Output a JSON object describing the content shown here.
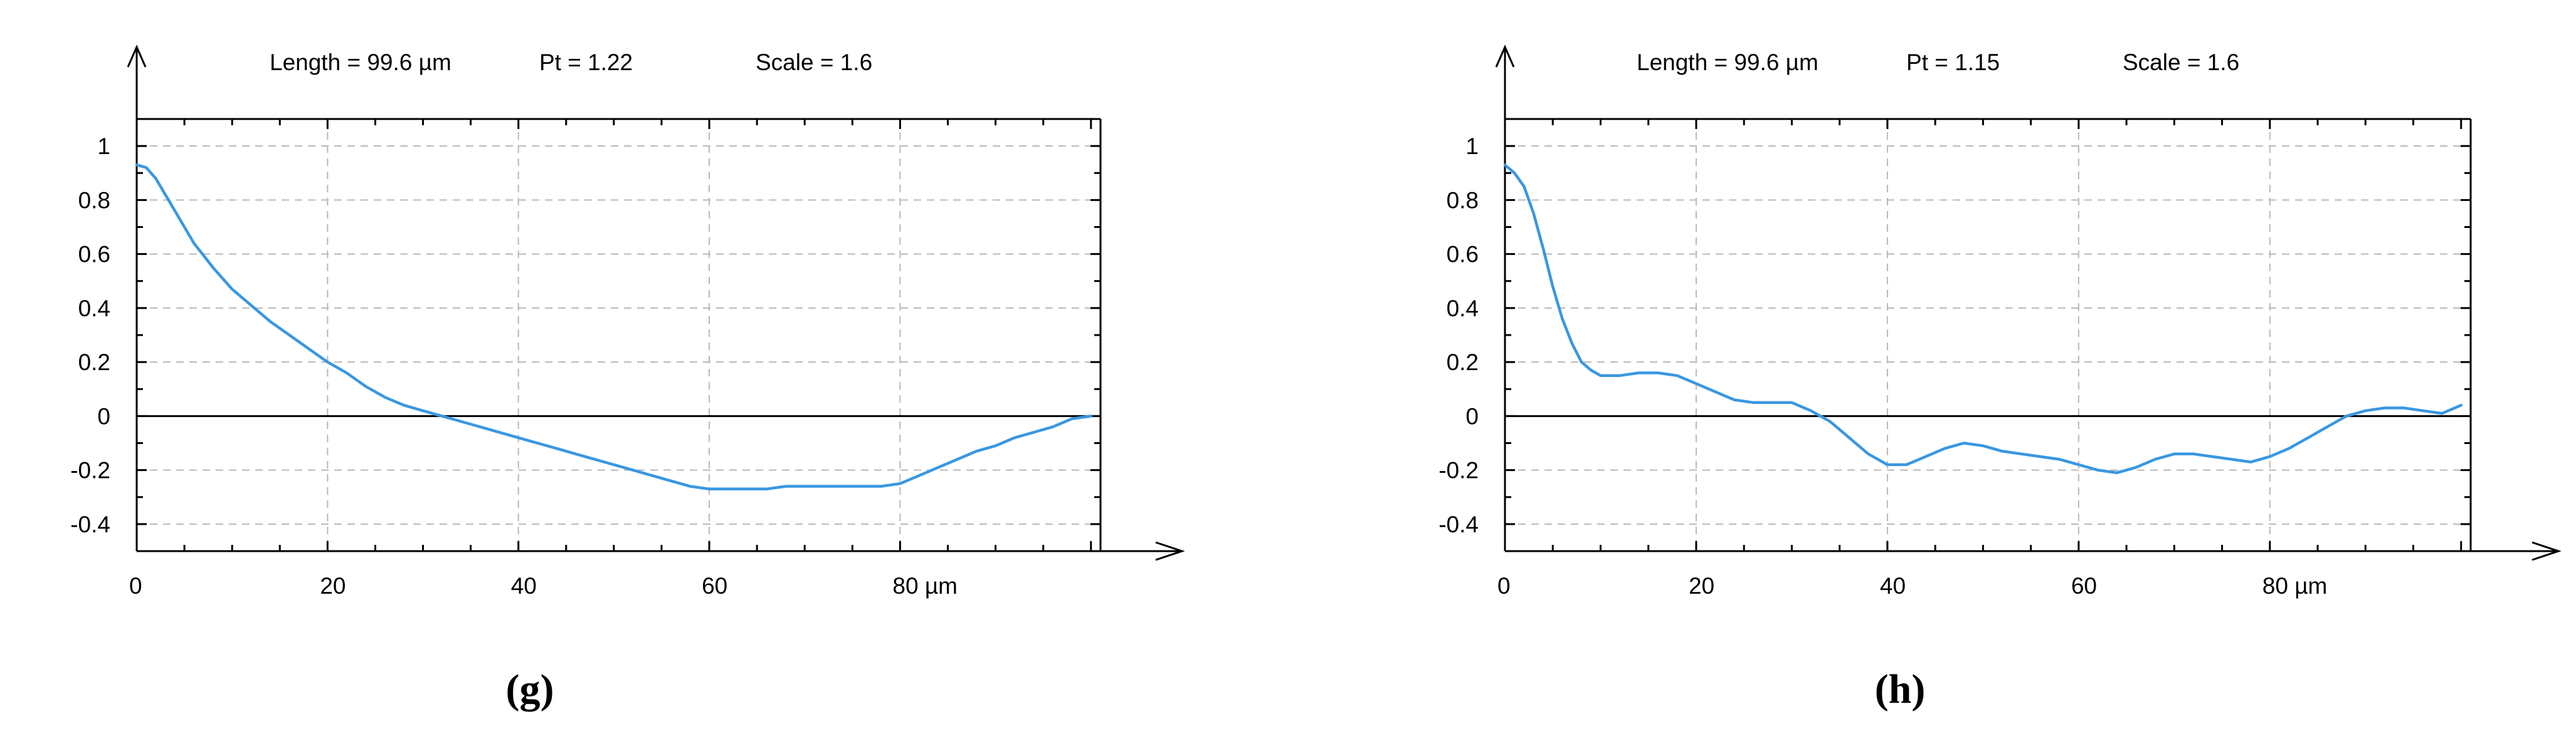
{
  "chart_data": [
    {
      "type": "line",
      "panel_label": "(g)",
      "header": {
        "length": "Length = 99.6 µm",
        "pt": "Pt = 1.22",
        "scale": "Scale = 1.6"
      },
      "x_ticks": [
        "0",
        "20",
        "40",
        "60",
        "80 µm"
      ],
      "y_ticks": [
        "1",
        "0.8",
        "0.6",
        "0.4",
        "0.2",
        "0",
        "-0.2",
        "-0.4"
      ],
      "xlim": [
        0,
        101
      ],
      "ylim": [
        -0.5,
        1.1
      ],
      "grid": true,
      "line_color": "#3a97e0",
      "series": [
        {
          "x": [
            0,
            1,
            2,
            3,
            4,
            5,
            6,
            8,
            10,
            12,
            14,
            16,
            18,
            20,
            22,
            24,
            26,
            28,
            30,
            32,
            34,
            36,
            38,
            40,
            42,
            44,
            46,
            48,
            50,
            52,
            54,
            56,
            58,
            60,
            62,
            64,
            66,
            68,
            70,
            72,
            74,
            76,
            78,
            80,
            82,
            84,
            86,
            88,
            90,
            92,
            94,
            96,
            98,
            100
          ],
          "y": [
            0.93,
            0.92,
            0.88,
            0.82,
            0.76,
            0.7,
            0.64,
            0.55,
            0.47,
            0.41,
            0.35,
            0.3,
            0.25,
            0.2,
            0.16,
            0.11,
            0.07,
            0.04,
            0.02,
            0.0,
            -0.02,
            -0.04,
            -0.06,
            -0.08,
            -0.1,
            -0.12,
            -0.14,
            -0.16,
            -0.18,
            -0.2,
            -0.22,
            -0.24,
            -0.26,
            -0.27,
            -0.27,
            -0.27,
            -0.27,
            -0.26,
            -0.26,
            -0.26,
            -0.26,
            -0.26,
            -0.26,
            -0.25,
            -0.22,
            -0.19,
            -0.16,
            -0.13,
            -0.11,
            -0.08,
            -0.06,
            -0.04,
            -0.01,
            0.0
          ]
        }
      ]
    },
    {
      "type": "line",
      "panel_label": "(h)",
      "header": {
        "length": "Length = 99.6 µm",
        "pt": "Pt = 1.15",
        "scale": "Scale = 1.6"
      },
      "x_ticks": [
        "0",
        "20",
        "40",
        "60",
        "80 µm"
      ],
      "y_ticks": [
        "1",
        "0.8",
        "0.6",
        "0.4",
        "0.2",
        "0",
        "-0.2",
        "-0.4"
      ],
      "xlim": [
        0,
        101
      ],
      "ylim": [
        -0.5,
        1.1
      ],
      "grid": true,
      "line_color": "#3a97e0",
      "series": [
        {
          "x": [
            0,
            1,
            2,
            3,
            4,
            5,
            6,
            7,
            8,
            9,
            10,
            12,
            14,
            16,
            18,
            20,
            22,
            24,
            26,
            28,
            30,
            32,
            34,
            36,
            38,
            40,
            42,
            44,
            46,
            48,
            50,
            52,
            54,
            56,
            58,
            60,
            62,
            64,
            66,
            68,
            70,
            72,
            74,
            76,
            78,
            80,
            82,
            84,
            86,
            88,
            90,
            92,
            94,
            96,
            98,
            100
          ],
          "y": [
            0.93,
            0.9,
            0.85,
            0.75,
            0.62,
            0.48,
            0.36,
            0.27,
            0.2,
            0.17,
            0.15,
            0.15,
            0.16,
            0.16,
            0.15,
            0.12,
            0.09,
            0.06,
            0.05,
            0.05,
            0.05,
            0.02,
            -0.02,
            -0.08,
            -0.14,
            -0.18,
            -0.18,
            -0.15,
            -0.12,
            -0.1,
            -0.11,
            -0.13,
            -0.14,
            -0.15,
            -0.16,
            -0.18,
            -0.2,
            -0.21,
            -0.19,
            -0.16,
            -0.14,
            -0.14,
            -0.15,
            -0.16,
            -0.17,
            -0.15,
            -0.12,
            -0.08,
            -0.04,
            0.0,
            0.02,
            0.03,
            0.03,
            0.02,
            0.01,
            0.04
          ]
        }
      ]
    }
  ]
}
